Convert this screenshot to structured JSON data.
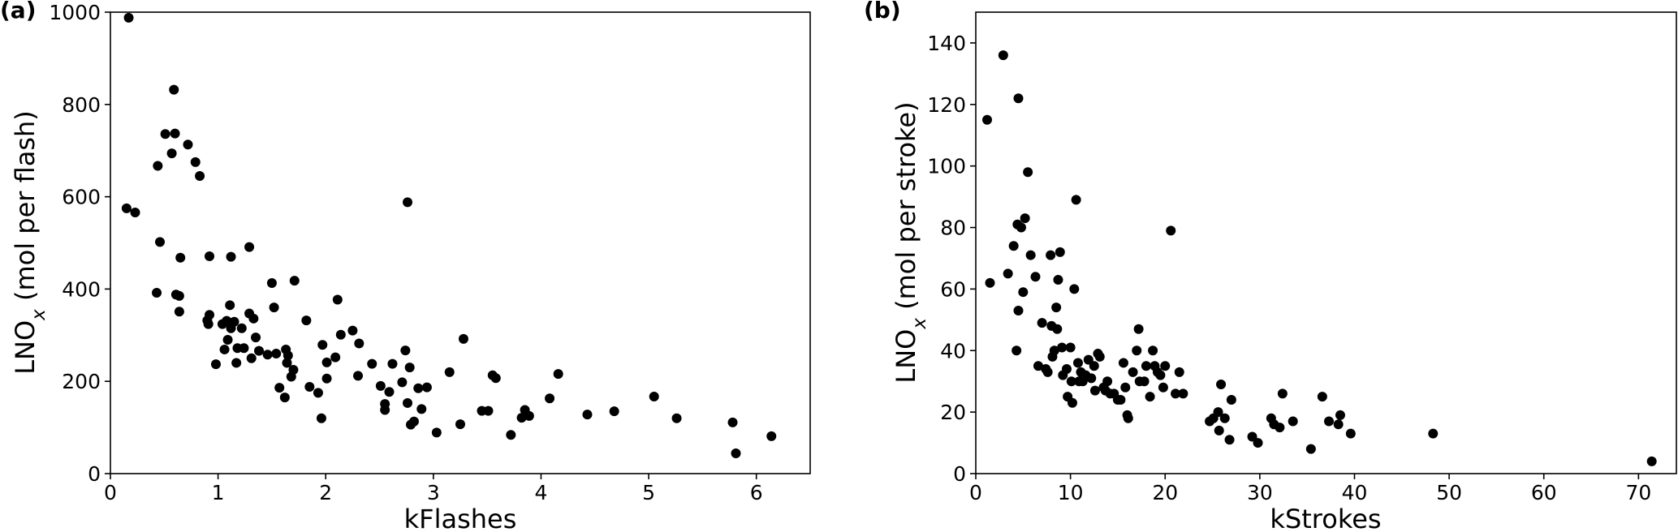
{
  "figure": {
    "panels": [
      {
        "label": "(a)"
      },
      {
        "label": "(b)"
      }
    ]
  },
  "chart_data": [
    {
      "type": "scatter",
      "panel_label": "(a)",
      "xlabel": "kFlashes",
      "ylabel": "LNO",
      "ylabel_subscript": "x",
      "ylabel_unit": "(mol per flash)",
      "xlim": [
        0,
        6.5
      ],
      "ylim": [
        0,
        1000
      ],
      "xticks": [
        0,
        1,
        2,
        3,
        4,
        5,
        6
      ],
      "xtick_labels": [
        "0",
        "1",
        "2",
        "3",
        "4",
        "5",
        "6"
      ],
      "yticks": [
        0,
        200,
        400,
        600,
        800,
        1000
      ],
      "ytick_labels": [
        "0",
        "200",
        "400",
        "600",
        "800",
        "1000"
      ],
      "grid": false,
      "marker_color": "#000000",
      "points": [
        [
          0.17,
          988
        ],
        [
          0.15,
          575
        ],
        [
          0.23,
          566
        ],
        [
          0.43,
          392
        ],
        [
          0.44,
          667
        ],
        [
          0.46,
          502
        ],
        [
          0.51,
          736
        ],
        [
          0.57,
          694
        ],
        [
          0.59,
          832
        ],
        [
          0.6,
          737
        ],
        [
          0.61,
          388
        ],
        [
          0.64,
          385
        ],
        [
          0.65,
          468
        ],
        [
          0.64,
          351
        ],
        [
          0.72,
          713
        ],
        [
          0.79,
          675
        ],
        [
          0.83,
          645
        ],
        [
          0.9,
          332
        ],
        [
          0.92,
          471
        ],
        [
          0.92,
          344
        ],
        [
          0.91,
          324
        ],
        [
          0.98,
          237
        ],
        [
          1.04,
          324
        ],
        [
          1.06,
          269
        ],
        [
          1.08,
          331
        ],
        [
          1.09,
          290
        ],
        [
          1.11,
          365
        ],
        [
          1.12,
          470
        ],
        [
          1.12,
          315
        ],
        [
          1.15,
          329
        ],
        [
          1.17,
          240
        ],
        [
          1.18,
          272
        ],
        [
          1.22,
          315
        ],
        [
          1.24,
          272
        ],
        [
          1.29,
          347
        ],
        [
          1.29,
          491
        ],
        [
          1.31,
          250
        ],
        [
          1.33,
          336
        ],
        [
          1.35,
          295
        ],
        [
          1.38,
          266
        ],
        [
          1.46,
          258
        ],
        [
          1.5,
          413
        ],
        [
          1.52,
          360
        ],
        [
          1.54,
          260
        ],
        [
          1.57,
          186
        ],
        [
          1.63,
          269
        ],
        [
          1.62,
          165
        ],
        [
          1.65,
          256
        ],
        [
          1.64,
          240
        ],
        [
          1.68,
          210
        ],
        [
          1.7,
          225
        ],
        [
          1.71,
          418
        ],
        [
          1.82,
          332
        ],
        [
          1.85,
          188
        ],
        [
          1.93,
          175
        ],
        [
          1.96,
          120
        ],
        [
          1.97,
          279
        ],
        [
          2.01,
          206
        ],
        [
          2.01,
          241
        ],
        [
          2.09,
          252
        ],
        [
          2.11,
          377
        ],
        [
          2.14,
          301
        ],
        [
          2.25,
          310
        ],
        [
          2.31,
          282
        ],
        [
          2.3,
          212
        ],
        [
          2.43,
          238
        ],
        [
          2.51,
          190
        ],
        [
          2.55,
          151
        ],
        [
          2.55,
          138
        ],
        [
          2.59,
          177
        ],
        [
          2.62,
          238
        ],
        [
          2.71,
          198
        ],
        [
          2.74,
          267
        ],
        [
          2.76,
          588
        ],
        [
          2.76,
          153
        ],
        [
          2.78,
          230
        ],
        [
          2.79,
          106
        ],
        [
          2.82,
          113
        ],
        [
          2.86,
          185
        ],
        [
          2.89,
          140
        ],
        [
          2.94,
          187
        ],
        [
          3.03,
          89
        ],
        [
          3.15,
          220
        ],
        [
          3.25,
          107
        ],
        [
          3.28,
          292
        ],
        [
          3.45,
          136
        ],
        [
          3.51,
          136
        ],
        [
          3.55,
          213
        ],
        [
          3.58,
          207
        ],
        [
          3.72,
          84
        ],
        [
          3.82,
          121
        ],
        [
          3.85,
          138
        ],
        [
          3.89,
          125
        ],
        [
          4.08,
          163
        ],
        [
          4.16,
          216
        ],
        [
          4.43,
          128
        ],
        [
          4.68,
          135
        ],
        [
          5.05,
          167
        ],
        [
          5.26,
          120
        ],
        [
          5.78,
          111
        ],
        [
          5.81,
          44
        ],
        [
          6.14,
          81
        ]
      ]
    },
    {
      "type": "scatter",
      "panel_label": "(b)",
      "xlabel": "kStrokes",
      "ylabel": "LNO",
      "ylabel_subscript": "x",
      "ylabel_unit": "(mol per stroke)",
      "xlim": [
        0,
        74
      ],
      "ylim": [
        0,
        150
      ],
      "xticks": [
        0,
        10,
        20,
        30,
        40,
        50,
        60,
        70
      ],
      "xtick_labels": [
        "0",
        "10",
        "20",
        "30",
        "40",
        "50",
        "60",
        "70"
      ],
      "yticks": [
        0,
        20,
        40,
        60,
        80,
        100,
        120,
        140
      ],
      "ytick_labels": [
        "0",
        "20",
        "40",
        "60",
        "80",
        "100",
        "120",
        "140"
      ],
      "grid": false,
      "marker_color": "#000000",
      "points": [
        [
          1.2,
          115
        ],
        [
          1.5,
          62
        ],
        [
          2.9,
          136
        ],
        [
          3.4,
          65
        ],
        [
          4.0,
          74
        ],
        [
          4.3,
          40
        ],
        [
          4.4,
          81
        ],
        [
          4.5,
          122
        ],
        [
          4.5,
          53
        ],
        [
          4.8,
          80
        ],
        [
          5.0,
          59
        ],
        [
          5.2,
          83
        ],
        [
          5.5,
          98
        ],
        [
          5.8,
          71
        ],
        [
          6.3,
          64
        ],
        [
          6.6,
          35
        ],
        [
          7.0,
          49
        ],
        [
          7.4,
          34
        ],
        [
          7.6,
          33
        ],
        [
          7.9,
          71
        ],
        [
          8.0,
          48
        ],
        [
          8.1,
          38
        ],
        [
          8.3,
          40
        ],
        [
          8.5,
          54
        ],
        [
          8.6,
          47
        ],
        [
          8.7,
          63
        ],
        [
          8.9,
          72
        ],
        [
          9.1,
          41
        ],
        [
          9.2,
          32
        ],
        [
          9.6,
          34
        ],
        [
          9.7,
          25
        ],
        [
          10.0,
          41
        ],
        [
          10.1,
          30
        ],
        [
          10.2,
          23
        ],
        [
          10.4,
          60
        ],
        [
          10.6,
          89
        ],
        [
          10.8,
          36
        ],
        [
          10.9,
          30
        ],
        [
          11.1,
          33
        ],
        [
          11.3,
          30
        ],
        [
          11.6,
          32
        ],
        [
          11.9,
          37
        ],
        [
          12.2,
          31
        ],
        [
          12.5,
          35
        ],
        [
          12.6,
          27
        ],
        [
          12.9,
          39
        ],
        [
          13.1,
          38
        ],
        [
          13.5,
          28
        ],
        [
          13.7,
          27
        ],
        [
          13.9,
          30
        ],
        [
          14.2,
          26
        ],
        [
          14.6,
          26
        ],
        [
          15.0,
          24
        ],
        [
          15.3,
          24
        ],
        [
          15.6,
          36
        ],
        [
          15.8,
          28
        ],
        [
          16.0,
          19
        ],
        [
          16.1,
          18
        ],
        [
          16.6,
          33
        ],
        [
          17.0,
          40
        ],
        [
          17.2,
          47
        ],
        [
          17.3,
          30
        ],
        [
          17.8,
          30
        ],
        [
          18.0,
          35
        ],
        [
          18.4,
          25
        ],
        [
          18.7,
          40
        ],
        [
          18.9,
          35
        ],
        [
          19.2,
          33
        ],
        [
          19.5,
          32
        ],
        [
          19.8,
          28
        ],
        [
          20.0,
          35
        ],
        [
          20.6,
          79
        ],
        [
          21.1,
          26
        ],
        [
          21.5,
          33
        ],
        [
          21.9,
          26
        ],
        [
          24.7,
          17
        ],
        [
          25.1,
          18
        ],
        [
          25.6,
          20
        ],
        [
          25.7,
          14
        ],
        [
          25.9,
          29
        ],
        [
          26.3,
          18
        ],
        [
          26.8,
          11
        ],
        [
          27.0,
          24
        ],
        [
          29.2,
          12
        ],
        [
          29.8,
          10
        ],
        [
          31.2,
          18
        ],
        [
          31.5,
          16
        ],
        [
          32.1,
          15
        ],
        [
          32.4,
          26
        ],
        [
          33.5,
          17
        ],
        [
          35.4,
          8
        ],
        [
          36.6,
          25
        ],
        [
          37.3,
          17
        ],
        [
          38.3,
          16
        ],
        [
          38.5,
          19
        ],
        [
          39.6,
          13
        ],
        [
          48.3,
          13
        ],
        [
          71.4,
          4
        ]
      ]
    }
  ]
}
